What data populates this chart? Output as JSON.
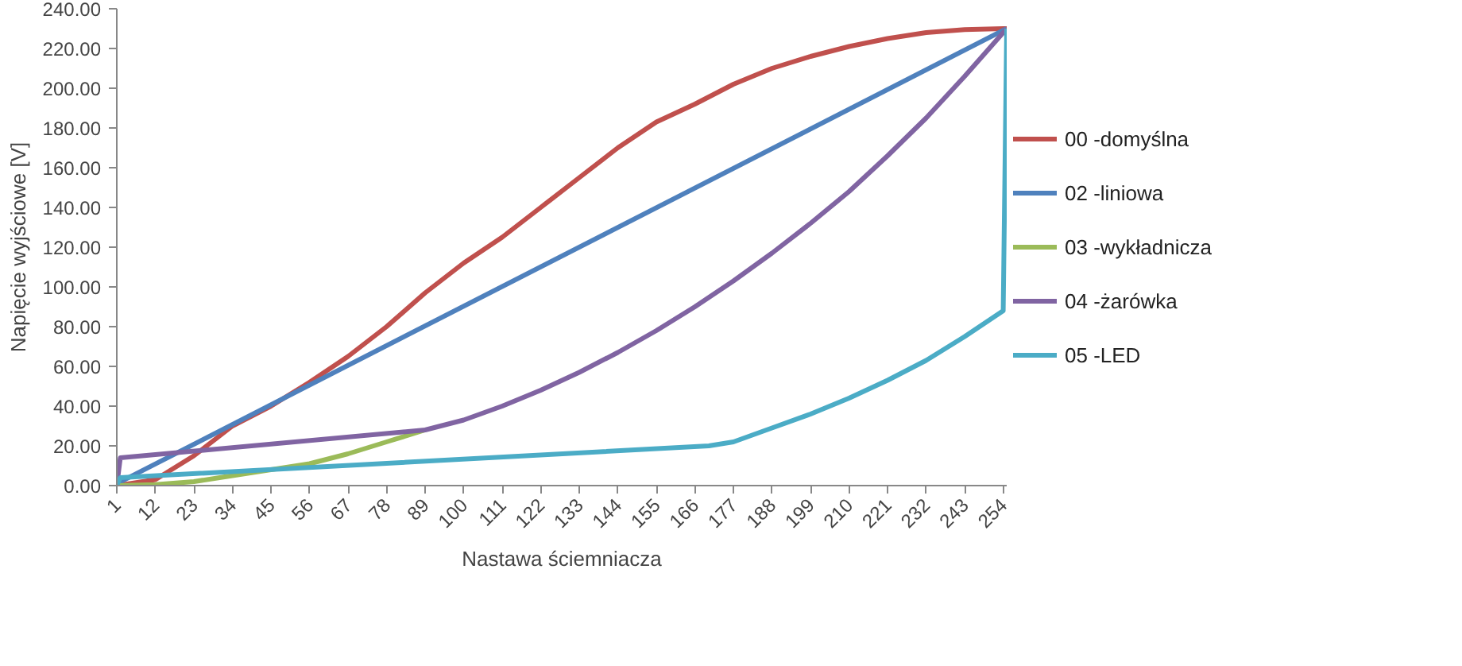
{
  "chart_data": {
    "type": "line",
    "xlabel": "Nastawa ściemniacza",
    "ylabel": "Napięcie wyjściowe [V]",
    "xlim": [
      1,
      255
    ],
    "xticks": [
      1,
      12,
      23,
      34,
      45,
      56,
      67,
      78,
      89,
      100,
      111,
      122,
      133,
      144,
      155,
      166,
      177,
      188,
      199,
      210,
      221,
      232,
      243,
      254
    ],
    "ylim": [
      0,
      240
    ],
    "yticks": [
      {
        "value": 0,
        "label": "0.00"
      },
      {
        "value": 20,
        "label": "20.00"
      },
      {
        "value": 40,
        "label": "40.00"
      },
      {
        "value": 60,
        "label": "60.00"
      },
      {
        "value": 80,
        "label": "80.00"
      },
      {
        "value": 100,
        "label": "100.00"
      },
      {
        "value": 120,
        "label": "120.00"
      },
      {
        "value": 140,
        "label": "140.00"
      },
      {
        "value": 160,
        "label": "160.00"
      },
      {
        "value": 180,
        "label": "180.00"
      },
      {
        "value": 200,
        "label": "200.00"
      },
      {
        "value": 220,
        "label": "220.00"
      },
      {
        "value": 240,
        "label": "240.00"
      }
    ],
    "grid": false,
    "legend": "right",
    "marker": "none",
    "line_style": "solid",
    "series": [
      {
        "name": "00 -domyślna",
        "color": "#c0504d",
        "x": [
          1,
          12,
          23,
          34,
          45,
          56,
          67,
          78,
          89,
          100,
          111,
          122,
          133,
          144,
          155,
          166,
          177,
          188,
          199,
          210,
          221,
          232,
          243,
          254,
          255
        ],
        "values": [
          0,
          3,
          15,
          30,
          40,
          52,
          65,
          80,
          97,
          112,
          125,
          140,
          155,
          170,
          183,
          192,
          202,
          210,
          216,
          221,
          225,
          228,
          229.5,
          230,
          230
        ]
      },
      {
        "name": "02 -liniowa",
        "color": "#4f81bd",
        "x": [
          1,
          255
        ],
        "values": [
          1,
          230
        ]
      },
      {
        "name": "03 -wykładnicza",
        "color": "#9bbb59",
        "x": [
          1,
          12,
          23,
          34,
          45,
          56,
          67,
          78,
          89
        ],
        "values": [
          0,
          0.5,
          2,
          5,
          8,
          11,
          16,
          22,
          28
        ]
      },
      {
        "name": "04 -żarówka",
        "color": "#8064a2",
        "x": [
          1,
          2,
          89,
          100,
          111,
          122,
          133,
          144,
          155,
          166,
          177,
          188,
          199,
          210,
          221,
          232,
          243,
          254,
          255
        ],
        "values": [
          0,
          14,
          28,
          33,
          40,
          48,
          57,
          67,
          78,
          90,
          103,
          117,
          132,
          148,
          166,
          185,
          206,
          228,
          230
        ]
      },
      {
        "name": "05 -LED",
        "color": "#4bacc6",
        "x": [
          1,
          2,
          170,
          177,
          188,
          199,
          210,
          221,
          232,
          243,
          254,
          255
        ],
        "values": [
          0,
          4,
          20,
          22,
          29,
          36,
          44,
          53,
          63,
          75,
          88,
          230
        ]
      }
    ]
  }
}
